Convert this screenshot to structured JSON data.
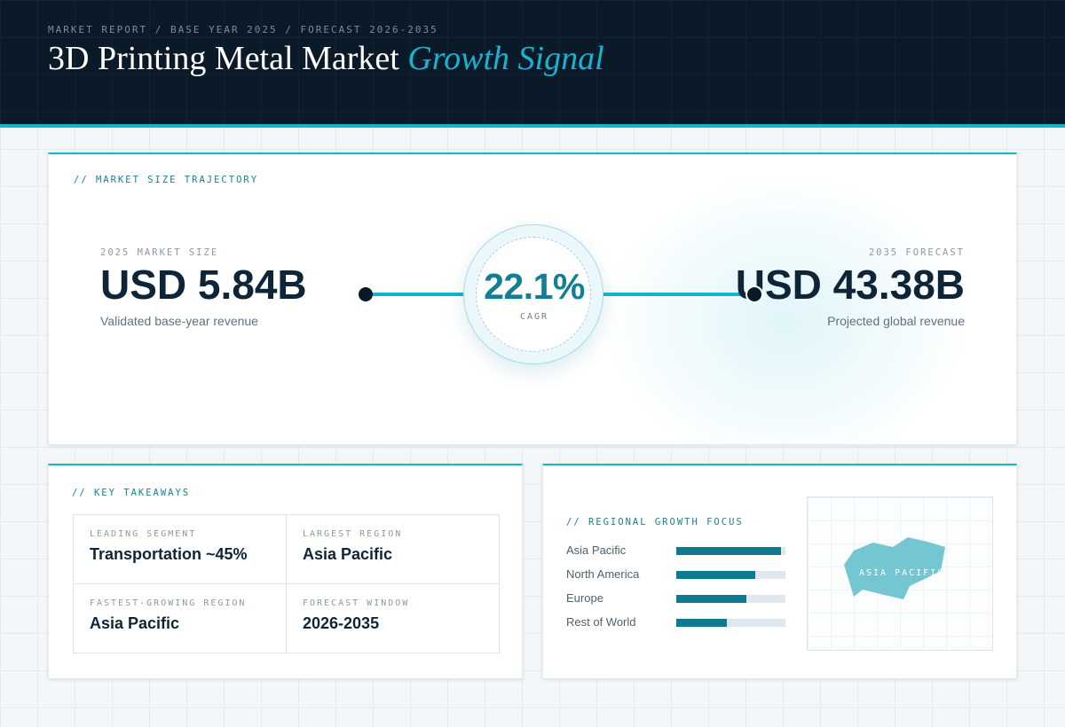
{
  "header": {
    "breadcrumb": "MARKET REPORT / BASE YEAR 2025 / FORECAST 2026-2035",
    "title": "3D Printing Metal Market",
    "title_accent": "Growth Signal"
  },
  "trajectory": {
    "section_label": "// MARKET SIZE TRAJECTORY",
    "start": {
      "label": "2025 MARKET SIZE",
      "value": "USD 5.84B",
      "caption": "Validated base-year revenue"
    },
    "cagr": {
      "value": "22.1%",
      "label": "CAGR"
    },
    "end": {
      "label": "2035 FORECAST",
      "value": "USD 43.38B",
      "caption": "Projected global revenue"
    }
  },
  "takeaways": {
    "section_label": "// KEY TAKEAWAYS",
    "items": [
      {
        "label": "LEADING SEGMENT",
        "value": "Transportation ~45%"
      },
      {
        "label": "LARGEST REGION",
        "value": "Asia Pacific"
      },
      {
        "label": "FASTEST-GROWING REGION",
        "value": "Asia Pacific"
      },
      {
        "label": "FORECAST WINDOW",
        "value": "2026-2035"
      }
    ]
  },
  "regional": {
    "section_label": "// REGIONAL GROWTH FOCUS",
    "bars": [
      {
        "name": "Asia Pacific",
        "level": 0.96
      },
      {
        "name": "North America",
        "level": 0.72
      },
      {
        "name": "Europe",
        "level": 0.64
      },
      {
        "name": "Rest of World",
        "level": 0.46
      }
    ],
    "map_label": "ASIA PACIFIC"
  },
  "colors": {
    "accent": "#14b4cf",
    "header_bg": "#0b1a28",
    "bar_fill": "#0f7a8d",
    "map_region": "#74c6d2"
  }
}
